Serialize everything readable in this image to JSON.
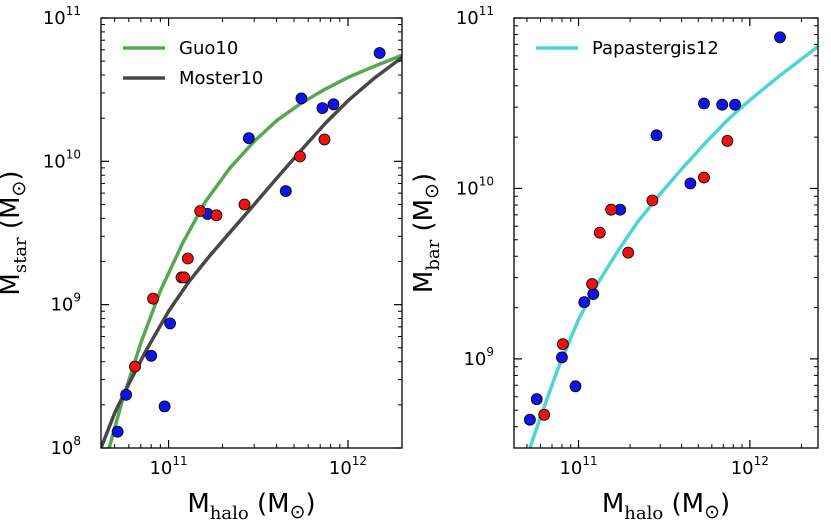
{
  "chart_data": [
    {
      "type": "scatter",
      "panel": "left",
      "xscale": "log",
      "yscale": "log",
      "xlim": [
        42000000000,
        2000000000000
      ],
      "ylim": [
        100000000,
        100000000000
      ],
      "xlabel": {
        "main": "M",
        "sub": "halo",
        "unit_open": " (M",
        "unit_symbol": "⊙",
        "unit_close": ")"
      },
      "ylabel": {
        "main": "M",
        "sub": "star",
        "unit_open": " (M",
        "unit_symbol": "⊙",
        "unit_close": ")"
      },
      "xticks": [
        {
          "value": 100000000000,
          "base": "10",
          "exp": "11"
        },
        {
          "value": 1000000000000,
          "base": "10",
          "exp": "12"
        }
      ],
      "yticks": [
        {
          "value": 100000000,
          "base": "10",
          "exp": "8"
        },
        {
          "value": 1000000000,
          "base": "10",
          "exp": "9"
        },
        {
          "value": 10000000000,
          "base": "10",
          "exp": "10"
        },
        {
          "value": 100000000000,
          "base": "10",
          "exp": "11"
        }
      ],
      "legend": {
        "location": "upper-left"
      },
      "lines": [
        {
          "name": "Guo10",
          "color": "#55a84f",
          "x": [
            45000000000,
            55000000000,
            70000000000,
            90000000000,
            120000000000,
            160000000000,
            220000000000,
            300000000000,
            400000000000,
            550000000000,
            750000000000,
            1000000000000,
            1400000000000,
            2000000000000
          ],
          "y": [
            85000000,
            210000000,
            540000000,
            1250000000,
            2700000000,
            5200000000,
            9000000000,
            13800000000,
            19200000000,
            25500000000,
            32000000000,
            38500000000,
            46000000000,
            55000000000
          ]
        },
        {
          "name": "Moster10",
          "color": "#474747",
          "x": [
            42000000000,
            50000000000,
            60000000000,
            75000000000,
            100000000000,
            130000000000,
            170000000000,
            220000000000,
            300000000000,
            400000000000,
            550000000000,
            750000000000,
            1000000000000,
            1400000000000,
            2000000000000
          ],
          "y": [
            100000000,
            175000000,
            280000000,
            480000000,
            900000000,
            1450000000,
            2200000000,
            3200000000,
            5000000000,
            7600000000,
            12000000000,
            18500000000,
            26500000000,
            38000000000,
            53000000000
          ]
        }
      ],
      "series": [
        {
          "name": "blue points",
          "color": "#0f14e6",
          "points": [
            [
              52000000000,
              130000000
            ],
            [
              58000000000,
              235000000
            ],
            [
              80000000000,
              440000000
            ],
            [
              95000000000,
              195000000
            ],
            [
              102000000000,
              740000000
            ],
            [
              165000000000,
              4300000000
            ],
            [
              280000000000,
              14500000000
            ],
            [
              450000000000,
              6200000000
            ],
            [
              550000000000,
              27500000000
            ],
            [
              720000000000,
              23500000000
            ],
            [
              830000000000,
              25000000000
            ],
            [
              1500000000000,
              57000000000
            ]
          ]
        },
        {
          "name": "red points",
          "color": "#ee1111",
          "points": [
            [
              65000000000,
              370000000
            ],
            [
              82000000000,
              1100000000
            ],
            [
              118000000000,
              1550000000
            ],
            [
              122000000000,
              1550000000
            ],
            [
              128000000000,
              2100000000
            ],
            [
              150000000000,
              4500000000
            ],
            [
              185000000000,
              4200000000
            ],
            [
              265000000000,
              5000000000
            ],
            [
              540000000000,
              10800000000
            ],
            [
              740000000000,
              14200000000
            ]
          ]
        }
      ]
    },
    {
      "type": "scatter",
      "panel": "right",
      "xscale": "log",
      "yscale": "log",
      "xlim": [
        42000000000,
        2500000000000
      ],
      "ylim": [
        300000000,
        100000000000
      ],
      "xlabel": {
        "main": "M",
        "sub": "halo",
        "unit_open": " (M",
        "unit_symbol": "⊙",
        "unit_close": ")"
      },
      "ylabel": {
        "main": "M",
        "sub": "bar",
        "unit_open": " (M",
        "unit_symbol": "⊙",
        "unit_close": ")"
      },
      "xticks": [
        {
          "value": 100000000000,
          "base": "10",
          "exp": "11"
        },
        {
          "value": 1000000000000,
          "base": "10",
          "exp": "12"
        }
      ],
      "yticks": [
        {
          "value": 1000000000,
          "base": "10",
          "exp": "9"
        },
        {
          "value": 10000000000,
          "base": "10",
          "exp": "10"
        },
        {
          "value": 100000000000,
          "base": "10",
          "exp": "11"
        }
      ],
      "legend": {
        "location": "upper-left"
      },
      "lines": [
        {
          "name": "Papastergis12",
          "color": "#4dd5d5",
          "x": [
            52000000000,
            62000000000,
            75000000000,
            100000000000,
            130000000000,
            170000000000,
            220000000000,
            300000000000,
            400000000000,
            550000000000,
            750000000000,
            1000000000000,
            1500000000000,
            2500000000000
          ],
          "y": [
            300000000,
            500000000,
            850000000,
            1700000000,
            2800000000,
            4300000000,
            6300000000,
            9300000000,
            13000000000,
            18500000000,
            25500000000,
            33000000000,
            46000000000,
            68000000000
          ]
        }
      ],
      "series": [
        {
          "name": "blue points",
          "color": "#0f14e6",
          "points": [
            [
              52000000000,
              440000000
            ],
            [
              57000000000,
              580000000
            ],
            [
              80000000000,
              1020000000
            ],
            [
              96000000000,
              690000000
            ],
            [
              108000000000,
              2150000000
            ],
            [
              122000000000,
              2400000000
            ],
            [
              175000000000,
              7500000000
            ],
            [
              285000000000,
              20500000000
            ],
            [
              450000000000,
              10700000000
            ],
            [
              540000000000,
              31500000000
            ],
            [
              690000000000,
              31000000000
            ],
            [
              820000000000,
              31000000000
            ],
            [
              1500000000000,
              77000000000
            ]
          ]
        },
        {
          "name": "red points",
          "color": "#ee1111",
          "points": [
            [
              63000000000,
              470000000
            ],
            [
              81000000000,
              1220000000
            ],
            [
              120000000000,
              2750000000
            ],
            [
              133000000000,
              5500000000
            ],
            [
              155000000000,
              7500000000
            ],
            [
              195000000000,
              4200000000
            ],
            [
              270000000000,
              8500000000
            ],
            [
              540000000000,
              11600000000
            ],
            [
              740000000000,
              19000000000
            ]
          ]
        }
      ]
    }
  ]
}
